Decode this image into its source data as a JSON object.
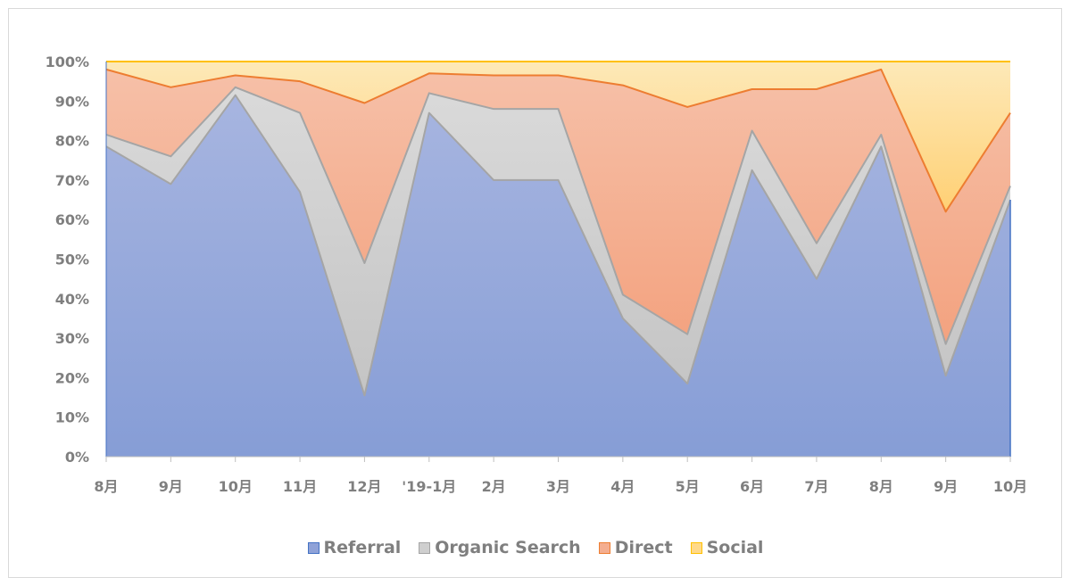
{
  "chart_data": {
    "type": "area",
    "stacked": "percent",
    "title": "",
    "xlabel": "",
    "ylabel": "",
    "ylim": [
      0,
      100
    ],
    "y_ticks": [
      "0%",
      "10%",
      "20%",
      "30%",
      "40%",
      "50%",
      "60%",
      "70%",
      "80%",
      "90%",
      "100%"
    ],
    "categories": [
      "8月",
      "9月",
      "10月",
      "11月",
      "12月",
      "'19-1月",
      "2月",
      "3月",
      "4月",
      "5月",
      "6月",
      "7月",
      "8月",
      "9月",
      "10月"
    ],
    "series": [
      {
        "name": "Referral",
        "color": "#8fa2d8",
        "line": "#a5a5a5",
        "cumulative": [
          78.5,
          69,
          91.5,
          67,
          15.5,
          87,
          70,
          70,
          35,
          18.5,
          72.5,
          45,
          78.5,
          20.5,
          65
        ]
      },
      {
        "name": "Organic Search",
        "color": "#cfcfcf",
        "line": "#a5a5a5",
        "cumulative": [
          81.5,
          76,
          93.5,
          87,
          49,
          92,
          88,
          88,
          41,
          31,
          82.5,
          54,
          81.5,
          28.5,
          68.5
        ]
      },
      {
        "name": "Direct",
        "color": "#f4ae90",
        "line": "#ed7d31",
        "cumulative": [
          98,
          93.5,
          96.5,
          95,
          89.5,
          97,
          96.5,
          96.5,
          94,
          88.5,
          93,
          93,
          98,
          62,
          87
        ]
      },
      {
        "name": "Social",
        "color": "#ffd98a",
        "line": "#ffc000",
        "cumulative": [
          100,
          100,
          100,
          100,
          100,
          100,
          100,
          100,
          100,
          100,
          100,
          100,
          100,
          100,
          100
        ]
      }
    ],
    "grid": false,
    "legend_position": "bottom"
  }
}
